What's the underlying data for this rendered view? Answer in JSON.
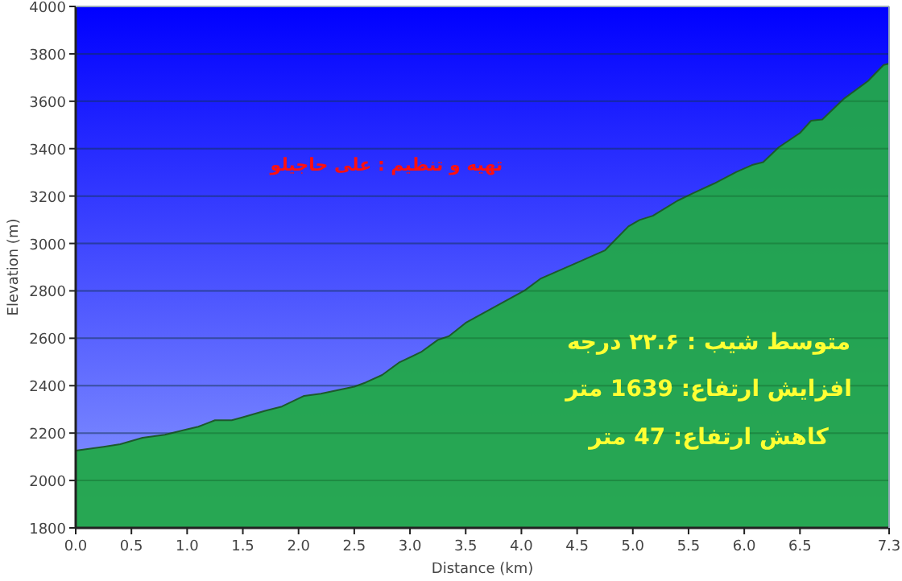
{
  "chart_data": {
    "type": "area",
    "xlabel": "Distance (km)",
    "ylabel": "Elevation (m)",
    "annotations": [
      "تهیه و تنظیم : علی حاجیلو",
      "متوسط شیب : ۲۲.۶  درجه",
      "افزایش ارتفاع: 1639 متر",
      "کاهش ارتفاع: 47 متر"
    ],
    "x": [
      0,
      0.25,
      0.4,
      0.6,
      0.8,
      1.0,
      1.1,
      1.25,
      1.4,
      1.5,
      1.7,
      1.85,
      2.05,
      2.2,
      2.5,
      2.6,
      2.75,
      2.9,
      3.1,
      3.25,
      3.35,
      3.5,
      4.03,
      4.17,
      4.48,
      4.75,
      4.96,
      5.06,
      5.18,
      5.4,
      5.54,
      5.73,
      5.93,
      6.07,
      6.17,
      6.31,
      6.5,
      6.6,
      6.7,
      6.89,
      7.11,
      7.25,
      7.3
    ],
    "series": [
      {
        "color": "#22a84a",
        "values": [
          2126,
          2142,
          2153,
          2180,
          2193,
          2216,
          2227,
          2254,
          2254,
          2267,
          2294,
          2312,
          2357,
          2366,
          2396,
          2413,
          2445,
          2497,
          2542,
          2593,
          2609,
          2665,
          2802,
          2851,
          2915,
          2971,
          3072,
          3099,
          3117,
          3180,
          3212,
          3253,
          3302,
          3331,
          3343,
          3406,
          3466,
          3518,
          3523,
          3609,
          3685,
          3753,
          3759
        ]
      }
    ],
    "xlim": [
      0,
      7.3
    ],
    "ylim": [
      1800,
      4000
    ],
    "xticks": [
      {
        "value": 0,
        "label": "0.0"
      },
      0.5,
      {
        "value": 1,
        "label": "1.0"
      },
      1.5,
      {
        "value": 2,
        "label": "2.0"
      },
      2.5,
      {
        "value": 3,
        "label": "3.0"
      },
      3.5,
      {
        "value": 4,
        "label": "4.0"
      },
      4.5,
      {
        "value": 5,
        "label": "5.0"
      },
      5.5,
      {
        "value": 6,
        "label": "6.0"
      },
      6.5,
      7.3
    ],
    "yticks": [
      1800,
      2000,
      2200,
      2400,
      2600,
      2800,
      3000,
      3200,
      3400,
      3600,
      3800,
      4000
    ],
    "grid": "y"
  }
}
